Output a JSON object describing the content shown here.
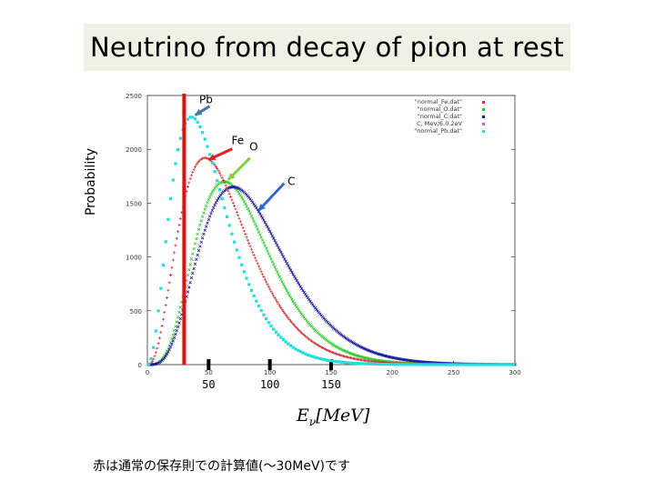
{
  "title": "Neutrino from decay of pion at rest",
  "footnote": "赤は通常の保存則での計算値(〜30MeV)です",
  "xlabel_main": "E",
  "xlabel_sub": "ν",
  "xlabel_unit": "[MeV]",
  "colors": {
    "title_bg": "#eef1e4",
    "Fe": "#cc3333",
    "O": "#33cc33",
    "C": "#1a1a99",
    "Pb": "#22dddd",
    "cut_line": "#dd1111",
    "arrow_Pb": "#4477aa",
    "arrow_Fe": "#dd2222",
    "arrow_O": "#88cc44",
    "arrow_C": "#3366cc"
  },
  "chart_data": {
    "type": "scatter",
    "xlabel": "E_ν [MeV]",
    "ylabel": "Probability",
    "xlim": [
      0,
      300
    ],
    "ylim": [
      0,
      2500
    ],
    "x_ticks": [
      0,
      50,
      100,
      150,
      200,
      250,
      300
    ],
    "y_ticks": [
      0,
      500,
      1000,
      1500,
      2000,
      2500
    ],
    "big_tick_labels": [
      "50",
      "100",
      "150"
    ],
    "big_tick_values": [
      50,
      100,
      150
    ],
    "cut_line_x": 30,
    "legend_position": "top-right",
    "legend": [
      "\"normal_Fe.dat\"",
      "\"normal_O.dat\"",
      "\"normal_C.dat\"",
      "C, MeV/6.0.2eV",
      "\"normal_Pb.dat\""
    ],
    "series": [
      {
        "name": "Fe",
        "peak_x": 47,
        "peak_y": 1920,
        "shape": 2.7
      },
      {
        "name": "O",
        "peak_x": 63,
        "peak_y": 1700,
        "shape": 4.2
      },
      {
        "name": "C",
        "peak_x": 70,
        "peak_y": 1650,
        "shape": 4.0
      },
      {
        "name": "Pb",
        "peak_x": 36,
        "peak_y": 2300,
        "shape": 2.4
      }
    ],
    "annotations": [
      {
        "label": "Pb",
        "x": 36,
        "y": 2300
      },
      {
        "label": "Fe",
        "x": 47,
        "y": 1920
      },
      {
        "label": "O",
        "x": 63,
        "y": 1700
      },
      {
        "label": "C",
        "x": 70,
        "y": 1650
      }
    ]
  }
}
